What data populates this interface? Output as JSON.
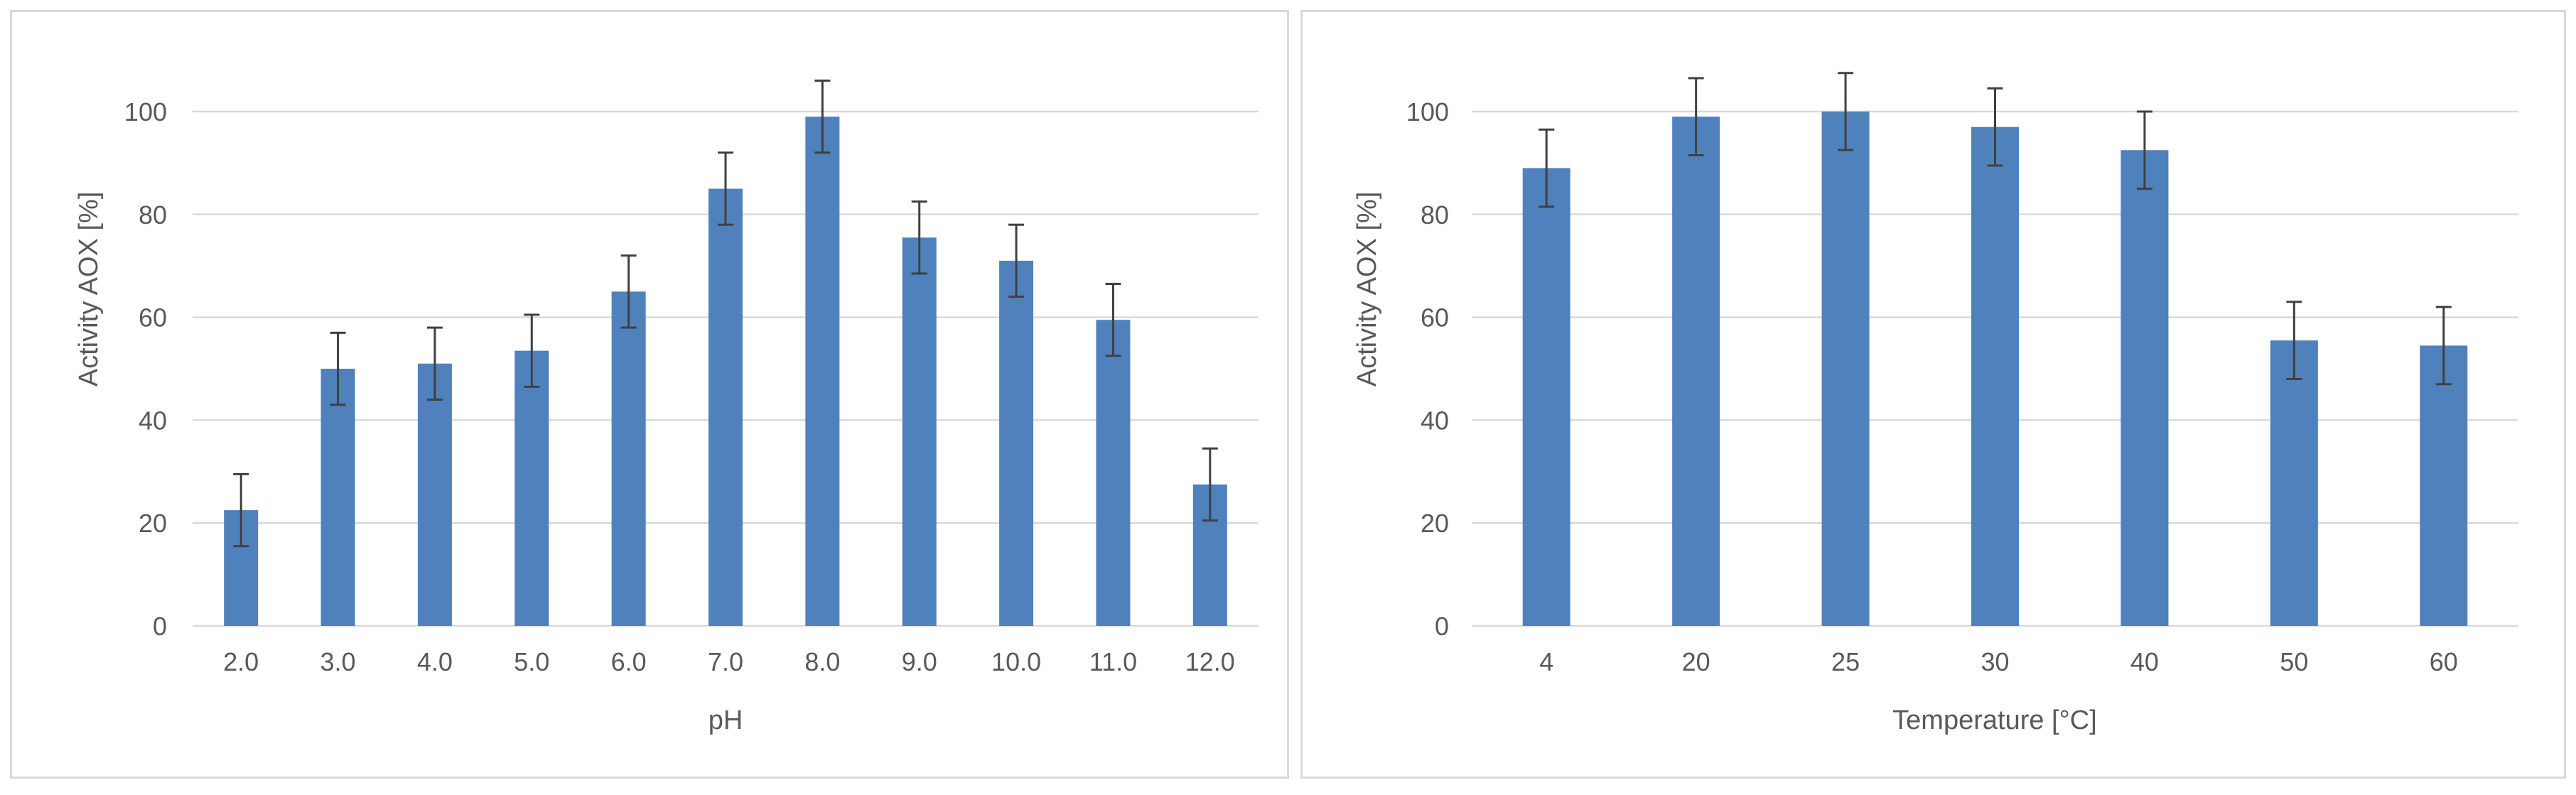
{
  "colors": {
    "bar": "#4f81bd",
    "error_bar": "#404040",
    "gridline": "#d9d9d9",
    "text": "#595959"
  },
  "chart_data": [
    {
      "type": "bar",
      "title": "",
      "xlabel": "pH",
      "ylabel": "Activity AOX [%]",
      "categories": [
        "2.0",
        "3.0",
        "4.0",
        "5.0",
        "6.0",
        "7.0",
        "8.0",
        "9.0",
        "10.0",
        "11.0",
        "12.0"
      ],
      "values": [
        22.5,
        50,
        51,
        53.5,
        65,
        85,
        99,
        75.5,
        71,
        59.5,
        27.5
      ],
      "error": [
        7,
        7,
        7,
        7,
        7,
        7,
        7,
        7,
        7,
        7,
        7
      ],
      "ylim": [
        0,
        100
      ],
      "yticks": [
        0,
        20,
        40,
        60,
        80,
        100
      ],
      "grid": true,
      "legend": "none"
    },
    {
      "type": "bar",
      "title": "",
      "xlabel": "Temperature [°C]",
      "ylabel": "Activity AOX [%]",
      "categories": [
        "4",
        "20",
        "25",
        "30",
        "40",
        "50",
        "60"
      ],
      "values": [
        89,
        99,
        100,
        97,
        92.5,
        55.5,
        54.5
      ],
      "error": [
        7.5,
        7.5,
        7.5,
        7.5,
        7.5,
        7.5,
        7.5
      ],
      "ylim": [
        0,
        100
      ],
      "yticks": [
        0,
        20,
        40,
        60,
        80,
        100
      ],
      "grid": true,
      "legend": "none"
    }
  ]
}
